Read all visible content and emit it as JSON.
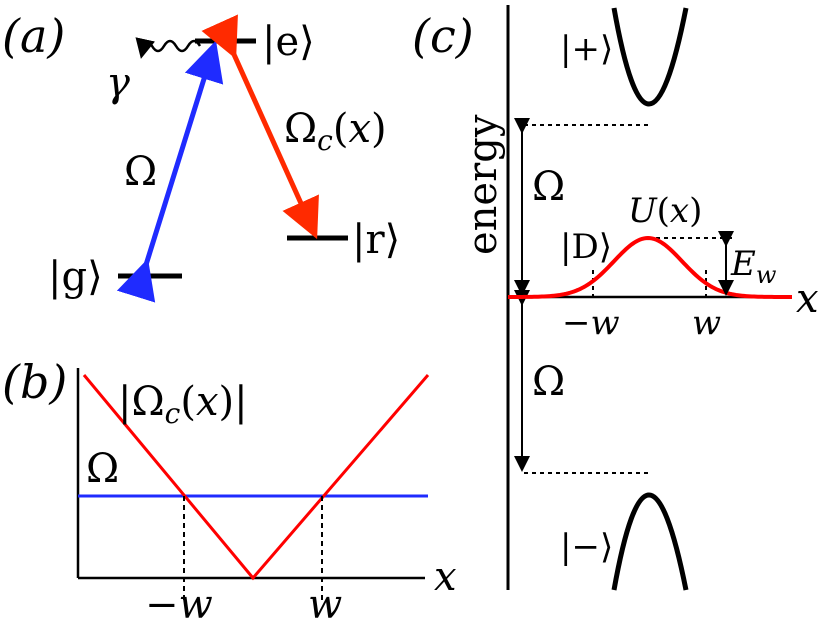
{
  "panel_a": {
    "label": "(a)",
    "levels": {
      "excited": "|e⟩",
      "ground": "|g⟩",
      "rydberg": "|r⟩"
    },
    "decay": "γ",
    "probe": "Ω",
    "control": "Ω_c(x)"
  },
  "panel_b": {
    "label": "(b)",
    "curve_control": "|Ω_c(x)|",
    "curve_probe": "Ω",
    "x_axis": "x",
    "ticks": [
      "−w",
      "w"
    ]
  },
  "panel_c": {
    "label": "(c)",
    "y_axis": "energy",
    "x_axis": "x",
    "bright_plus": "|+⟩",
    "bright_minus": "|−⟩",
    "dark": "|D⟩",
    "potential": "U(x)",
    "barrier": "E_w",
    "gap_upper": "Ω",
    "gap_lower": "Ω",
    "ticks": [
      "−w",
      "w"
    ]
  },
  "colors": {
    "probe": "#1f2bff",
    "control": "#ff2a00",
    "curve": "#ff0000",
    "line": "#000000"
  }
}
